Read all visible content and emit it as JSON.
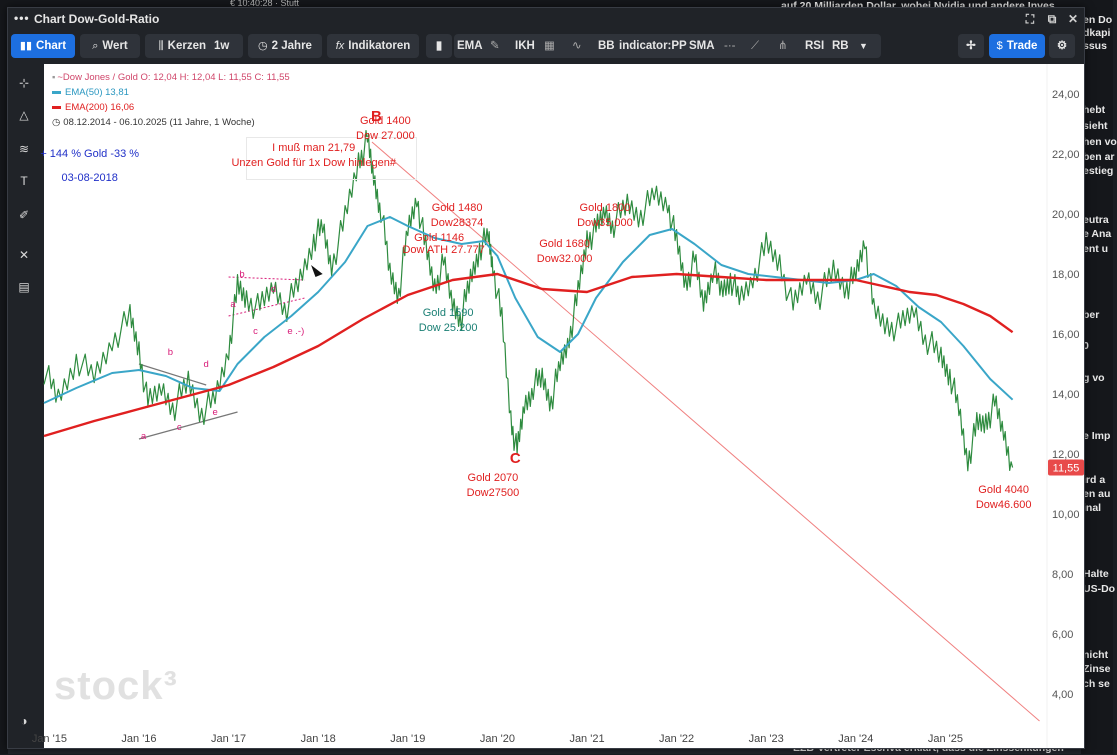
{
  "background": {
    "top_text": "€  10:40:28 · Stutt",
    "right_lines": [
      {
        "t": "auf 20 Milliarden Dollar, wobei Nvidia und andere Inves",
        "y": 0
      },
      {
        "t": "en Do",
        "y": 14
      },
      {
        "t": "dkapi",
        "y": 27
      },
      {
        "t": "ssus",
        "y": 40
      },
      {
        "t": "hebt",
        "y": 104
      },
      {
        "t": "sieht",
        "y": 120
      },
      {
        "t": "hen vo",
        "y": 136
      },
      {
        "t": "ben ar",
        "y": 151
      },
      {
        "t": "estieg",
        "y": 165
      },
      {
        "t": "eutra",
        "y": 214
      },
      {
        "t": "e Ana",
        "y": 228
      },
      {
        "t": "ent u",
        "y": 243
      },
      {
        "t": "ber",
        "y": 309
      },
      {
        "t": "0",
        "y": 340
      },
      {
        "t": "g vo",
        "y": 372
      },
      {
        "t": "e Imp",
        "y": 430
      },
      {
        "t": "ird a",
        "y": 474
      },
      {
        "t": "en au",
        "y": 488
      },
      {
        "t": "inal",
        "y": 502
      },
      {
        "t": "Halte",
        "y": 568
      },
      {
        "t": "US-Do",
        "y": 583
      },
      {
        "t": "nicht",
        "y": 649
      },
      {
        "t": "Zinse",
        "y": 663
      },
      {
        "t": "ch se",
        "y": 678
      },
      {
        "t": "EZB-Vertreter Escriva erklärt, dass die Zinssenkungen",
        "y": 742
      }
    ]
  },
  "window": {
    "title": "Chart Dow-Gold-Ratio",
    "toolbar": {
      "chart": "Chart",
      "wert": "Wert",
      "kerzen": "Kerzen",
      "interval": "1w",
      "period": "2 Jahre",
      "indikatoren": "Indikatoren",
      "indicators": [
        "EMA",
        "IKH",
        "BB",
        "indicator:PP",
        "SMA",
        "RSI",
        "RB"
      ],
      "trade": "Trade"
    }
  },
  "legend": {
    "main": "~Dow Jones / Gold  O: 12,04  H: 12,04  L: 11,55  C: 11,55",
    "ema50": "EMA(50)  13,81",
    "ema200": "EMA(200)  16,06",
    "range": "08.12.2014 - 06.10.2025   (11 Jahre, 1 Woche)"
  },
  "colors": {
    "price": "#2e8b3f",
    "ema50": "#3aa6c8",
    "ema200": "#e02020",
    "trendline": "#f08080",
    "red_text": "#e02020",
    "blue_text": "#2030c8",
    "teal_text": "#1a7f74",
    "magenta_text": "#d81b78"
  },
  "chart_data": {
    "type": "line",
    "ylim": [
      3.0,
      25.0
    ],
    "y_ticks": [
      "24,00",
      "22,00",
      "20,00",
      "18,00",
      "16,00",
      "14,00",
      "12,00",
      "10,00",
      "8,00",
      "6,00",
      "4,00"
    ],
    "y_tick_values": [
      24,
      22,
      20,
      18,
      16,
      14,
      12,
      10,
      8,
      6,
      4
    ],
    "x_ticks": [
      "Jan '15",
      "Jan '16",
      "Jan '17",
      "Jan '18",
      "Jan '19",
      "Jan '20",
      "Jan '21",
      "Jan '22",
      "Jan '23",
      "Jan '24",
      "Jan '25"
    ],
    "x_tick_values": [
      2015,
      2016,
      2017,
      2018,
      2019,
      2020,
      2021,
      2022,
      2023,
      2024,
      2025
    ],
    "xlim": [
      2014.94,
      2026.1
    ],
    "last_price_label": "11,55",
    "last_price": 11.55,
    "series": [
      {
        "name": "~Dow Jones / Gold",
        "color": "#2e8b3f",
        "x": [
          2014.94,
          2015.1,
          2015.3,
          2015.5,
          2015.7,
          2015.9,
          2016.0,
          2016.1,
          2016.25,
          2016.4,
          2016.55,
          2016.7,
          2016.85,
          2017.0,
          2017.1,
          2017.2,
          2017.35,
          2017.5,
          2017.65,
          2017.8,
          2017.95,
          2018.05,
          2018.15,
          2018.3,
          2018.45,
          2018.55,
          2018.62,
          2018.7,
          2018.8,
          2018.9,
          2019.0,
          2019.1,
          2019.2,
          2019.3,
          2019.4,
          2019.5,
          2019.6,
          2019.7,
          2019.8,
          2019.9,
          2019.95,
          2020.05,
          2020.15,
          2020.22,
          2020.3,
          2020.4,
          2020.5,
          2020.6,
          2020.7,
          2020.8,
          2020.9,
          2021.0,
          2021.1,
          2021.2,
          2021.3,
          2021.45,
          2021.6,
          2021.75,
          2021.9,
          2022.0,
          2022.1,
          2022.2,
          2022.3,
          2022.4,
          2022.5,
          2022.6,
          2022.7,
          2022.85,
          2023.0,
          2023.15,
          2023.3,
          2023.45,
          2023.6,
          2023.75,
          2023.9,
          2024.0,
          2024.1,
          2024.2,
          2024.35,
          2024.5,
          2024.65,
          2024.8,
          2024.95,
          2025.05,
          2025.15,
          2025.25,
          2025.35,
          2025.45,
          2025.55,
          2025.65,
          2025.75
        ],
        "y": [
          14.8,
          13.8,
          15.2,
          14.5,
          15.8,
          16.5,
          15.5,
          13.6,
          14.2,
          13.6,
          14.4,
          13.4,
          13.8,
          15.5,
          17.5,
          17.2,
          16.8,
          17.6,
          16.9,
          17.8,
          19.2,
          19.5,
          18.3,
          19.8,
          21.8,
          22.4,
          21.2,
          20.2,
          18.0,
          17.4,
          19.4,
          20.6,
          18.8,
          17.6,
          18.3,
          17.0,
          16.6,
          17.8,
          18.9,
          19.2,
          18.3,
          16.4,
          13.2,
          12.0,
          13.6,
          14.3,
          14.5,
          13.8,
          14.9,
          15.9,
          17.3,
          19.2,
          19.4,
          20.1,
          19.7,
          20.3,
          20.0,
          20.6,
          20.4,
          19.0,
          17.7,
          18.4,
          17.0,
          18.2,
          17.4,
          17.9,
          17.1,
          17.9,
          18.9,
          18.4,
          16.8,
          17.9,
          17.3,
          18.1,
          17.6,
          17.9,
          19.2,
          16.7,
          16.3,
          16.2,
          16.8,
          15.8,
          15.2,
          14.7,
          13.4,
          11.8,
          12.9,
          13.1,
          13.6,
          12.7,
          11.55
        ]
      },
      {
        "name": "EMA(50)",
        "color": "#3aa6c8",
        "x": [
          2014.94,
          2015.3,
          2015.7,
          2016.0,
          2016.3,
          2016.6,
          2016.9,
          2017.1,
          2017.4,
          2017.7,
          2018.0,
          2018.3,
          2018.55,
          2018.8,
          2019.0,
          2019.3,
          2019.6,
          2019.85,
          2020.0,
          2020.2,
          2020.45,
          2020.7,
          2020.9,
          2021.1,
          2021.4,
          2021.7,
          2021.95,
          2022.2,
          2022.5,
          2022.8,
          2023.1,
          2023.4,
          2023.7,
          2024.0,
          2024.2,
          2024.45,
          2024.7,
          2024.95,
          2025.2,
          2025.5,
          2025.75
        ],
        "y": [
          13.7,
          14.2,
          14.7,
          14.8,
          14.6,
          14.2,
          14.1,
          15.0,
          15.9,
          16.6,
          17.4,
          18.4,
          19.6,
          19.9,
          19.6,
          19.2,
          19.0,
          19.1,
          18.6,
          17.2,
          15.9,
          15.4,
          16.0,
          17.2,
          18.4,
          19.3,
          19.5,
          19.0,
          18.3,
          18.0,
          17.9,
          17.8,
          17.7,
          17.8,
          18.0,
          17.6,
          16.9,
          16.4,
          15.6,
          14.5,
          13.81
        ]
      },
      {
        "name": "EMA(200)",
        "color": "#e02020",
        "x": [
          2014.94,
          2015.5,
          2016.0,
          2016.5,
          2017.0,
          2017.5,
          2018.0,
          2018.5,
          2019.0,
          2019.5,
          2020.0,
          2020.5,
          2021.0,
          2021.5,
          2022.0,
          2022.5,
          2023.0,
          2023.5,
          2024.0,
          2024.3,
          2024.6,
          2024.9,
          2025.2,
          2025.5,
          2025.75
        ],
        "y": [
          12.6,
          13.1,
          13.5,
          13.9,
          14.3,
          14.9,
          15.6,
          16.5,
          17.3,
          17.8,
          18.0,
          17.5,
          17.4,
          17.9,
          18.0,
          17.9,
          17.8,
          17.8,
          17.8,
          17.6,
          17.4,
          17.3,
          17.0,
          16.6,
          16.06
        ]
      }
    ],
    "trendline": {
      "from": [
        2018.6,
        22.4
      ],
      "to": [
        2026.05,
        3.1
      ]
    },
    "annotations": [
      {
        "text": "Gold 1400",
        "x": 2018.75,
        "y": 23.0,
        "color": "red"
      },
      {
        "text": "Dow 27.000",
        "x": 2018.75,
        "y": 22.5,
        "color": "red"
      },
      {
        "text": "B",
        "x": 2018.65,
        "y": 23.1,
        "color": "red",
        "big": true
      },
      {
        "text": "I muß man 21,79",
        "x": 2017.95,
        "y": 22.1,
        "color": "red"
      },
      {
        "text": "Unzen Gold für 1x Dow hinlegen#",
        "x": 2017.95,
        "y": 21.6,
        "color": "red"
      },
      {
        "text": "+ 144 % Gold -33 %",
        "x": 2015.45,
        "y": 21.9,
        "color": "blue"
      },
      {
        "text": "03-08-2018",
        "x": 2015.45,
        "y": 21.1,
        "color": "blue"
      },
      {
        "text": "Gold 1480",
        "x": 2019.55,
        "y": 20.1,
        "color": "red"
      },
      {
        "text": "Dow28374",
        "x": 2019.55,
        "y": 19.6,
        "color": "red"
      },
      {
        "text": "Gold 1146",
        "x": 2019.35,
        "y": 19.1,
        "color": "red"
      },
      {
        "text": "Dow ATH 27.777",
        "x": 2019.4,
        "y": 18.7,
        "color": "red"
      },
      {
        "text": "Gold 1800",
        "x": 2021.2,
        "y": 20.1,
        "color": "red"
      },
      {
        "text": "Dow35.000",
        "x": 2021.2,
        "y": 19.6,
        "color": "red"
      },
      {
        "text": "Gold 1680",
        "x": 2020.75,
        "y": 18.9,
        "color": "red"
      },
      {
        "text": "Dow32.000",
        "x": 2020.75,
        "y": 18.4,
        "color": "red"
      },
      {
        "text": "Gold 1590",
        "x": 2019.45,
        "y": 16.6,
        "color": "teal"
      },
      {
        "text": "Dow 25.200",
        "x": 2019.45,
        "y": 16.1,
        "color": "teal"
      },
      {
        "text": "Gold 2070",
        "x": 2019.95,
        "y": 11.1,
        "color": "red"
      },
      {
        "text": "Dow27500",
        "x": 2019.95,
        "y": 10.6,
        "color": "red"
      },
      {
        "text": "C",
        "x": 2020.2,
        "y": 11.7,
        "color": "red",
        "big": true
      },
      {
        "text": "Gold 4040",
        "x": 2025.65,
        "y": 10.7,
        "color": "red"
      },
      {
        "text": "Dow46.600",
        "x": 2025.65,
        "y": 10.2,
        "color": "red"
      },
      {
        "text": "b",
        "x": 2016.35,
        "y": 15.3,
        "color": "magenta",
        "small": true
      },
      {
        "text": "d",
        "x": 2016.75,
        "y": 14.9,
        "color": "magenta",
        "small": true
      },
      {
        "text": "a",
        "x": 2016.05,
        "y": 12.5,
        "color": "magenta",
        "small": true
      },
      {
        "text": "c",
        "x": 2016.45,
        "y": 12.8,
        "color": "magenta",
        "small": true
      },
      {
        "text": "e",
        "x": 2016.85,
        "y": 13.3,
        "color": "magenta",
        "small": true
      },
      {
        "text": "b",
        "x": 2017.15,
        "y": 17.9,
        "color": "magenta",
        "small": true
      },
      {
        "text": "d",
        "x": 2017.5,
        "y": 17.4,
        "color": "magenta",
        "small": true
      },
      {
        "text": "a",
        "x": 2017.05,
        "y": 16.9,
        "color": "magenta",
        "small": true
      },
      {
        "text": "c",
        "x": 2017.3,
        "y": 16.0,
        "color": "magenta",
        "small": true
      },
      {
        "text": "e .-)",
        "x": 2017.75,
        "y": 16.0,
        "color": "magenta",
        "small": true
      }
    ],
    "triangle_pattern": {
      "upper": [
        [
          2016.0,
          15.0
        ],
        [
          2016.75,
          14.3
        ]
      ],
      "lower": [
        [
          2016.0,
          12.5
        ],
        [
          2017.1,
          13.4
        ]
      ]
    },
    "dotted_pattern": {
      "upper": [
        [
          2017.0,
          17.9
        ],
        [
          2017.85,
          17.8
        ]
      ],
      "lower": [
        [
          2017.0,
          16.6
        ],
        [
          2017.85,
          17.2
        ]
      ]
    }
  }
}
